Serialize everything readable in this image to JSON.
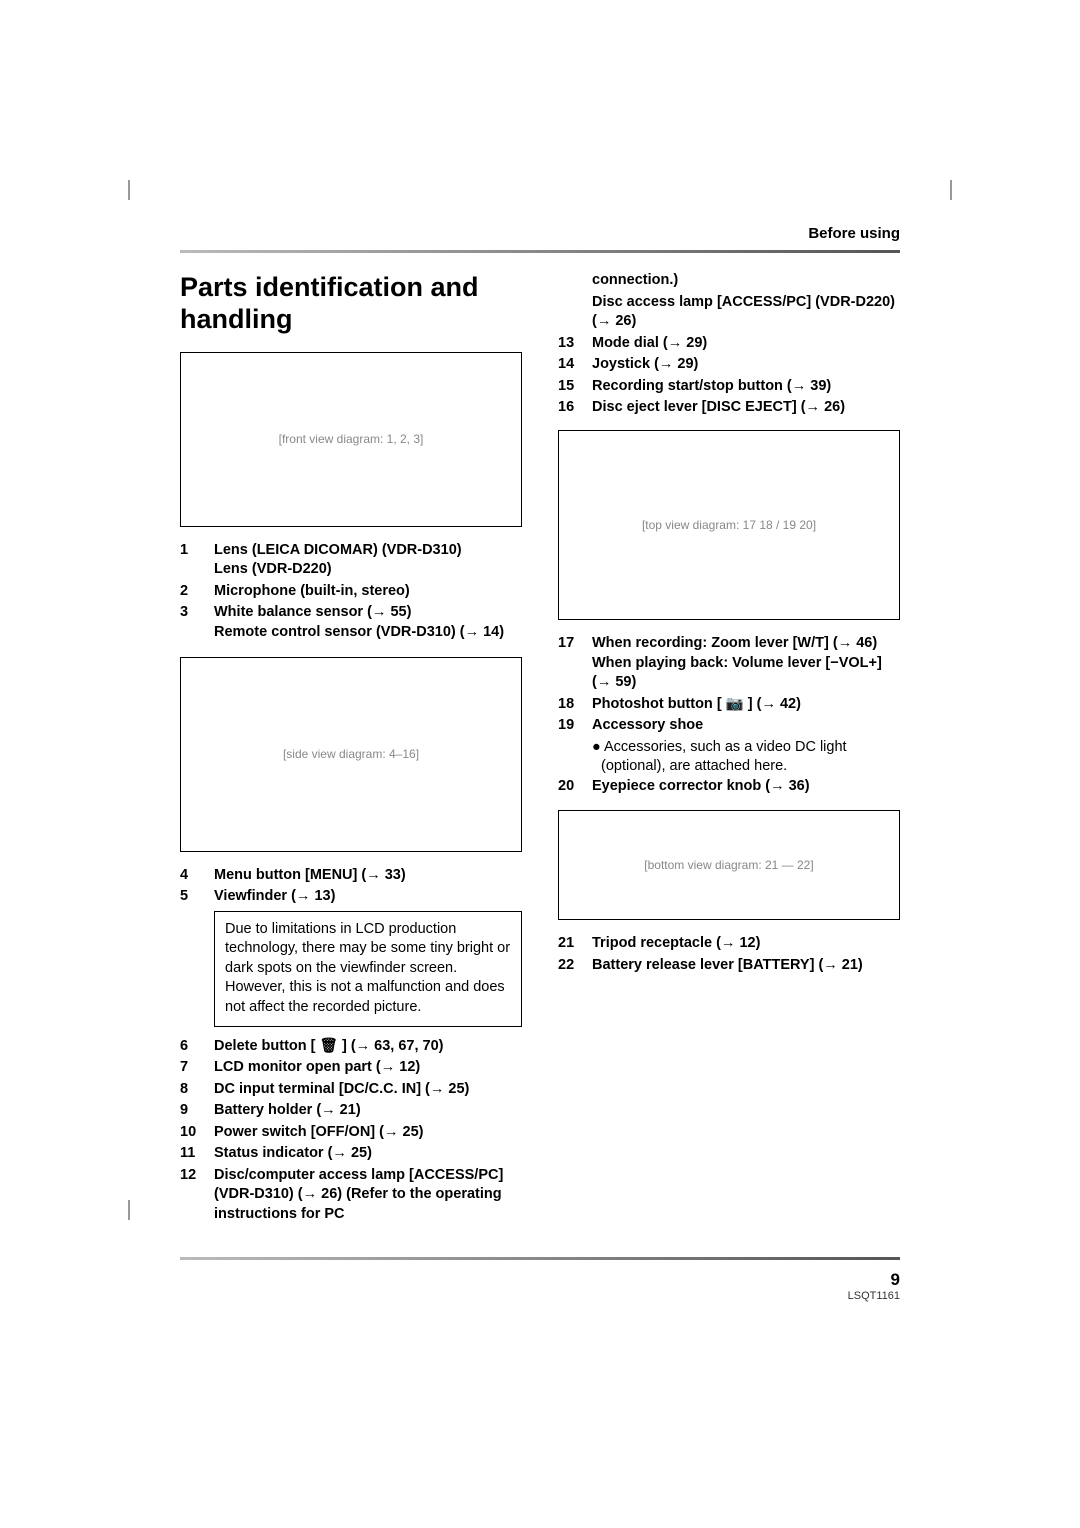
{
  "section_header": "Before using",
  "title": "Parts identification and handling",
  "page_number": "9",
  "doc_id": "LSQT1161",
  "figures": {
    "fig1_alt": "[front view diagram: 1, 2, 3]",
    "fig2_alt": "[side view diagram: 4–16]",
    "fig3_alt": "[top view diagram: 17 18 / 19 20]",
    "fig4_alt": "[bottom view diagram: 21 — 22]"
  },
  "left_list_a": [
    {
      "n": "1",
      "t": "Lens (LEICA DICOMAR) (VDR-D310)\nLens (VDR-D220)"
    },
    {
      "n": "2",
      "t": "Microphone (built-in, stereo)"
    },
    {
      "n": "3",
      "t": "White balance sensor (→ 55)\nRemote control sensor (VDR-D310) (→ 14)"
    }
  ],
  "left_list_b": [
    {
      "n": "4",
      "t": "Menu button [MENU] (→ 33)"
    },
    {
      "n": "5",
      "t": "Viewfinder (→ 13)"
    }
  ],
  "viewfinder_note": "Due to limitations in LCD production technology, there may be some tiny bright or dark spots on the viewfinder screen. However, this is not a malfunction and does not affect the recorded picture.",
  "left_list_c": [
    {
      "n": "6",
      "t": "Delete button [ 🗑 ] (→ 63, 67, 70)"
    },
    {
      "n": "7",
      "t": "LCD monitor open part (→ 12)"
    },
    {
      "n": "8",
      "t": "DC input terminal [DC/C.C. IN] (→ 25)"
    },
    {
      "n": "9",
      "t": "Battery holder (→ 21)"
    },
    {
      "n": "10",
      "t": "Power switch [OFF/ON] (→ 25)"
    },
    {
      "n": "11",
      "t": "Status indicator (→ 25)"
    },
    {
      "n": "12",
      "t": "Disc/computer access lamp [ACCESS/PC] (VDR-D310) (→ 26) (Refer to the operating instructions for PC"
    }
  ],
  "right_cont": [
    "connection.)",
    "Disc access lamp [ACCESS/PC] (VDR-D220) (→ 26)"
  ],
  "right_list_a": [
    {
      "n": "13",
      "t": "Mode dial (→ 29)"
    },
    {
      "n": "14",
      "t": "Joystick (→ 29)"
    },
    {
      "n": "15",
      "t": "Recording start/stop button (→ 39)"
    },
    {
      "n": "16",
      "t": "Disc eject lever [DISC EJECT] (→ 26)"
    }
  ],
  "right_list_b": [
    {
      "n": "17",
      "t": "When recording: Zoom lever [W/T] (→ 46)\nWhen playing back: Volume lever [−VOL+] (→ 59)"
    },
    {
      "n": "18",
      "t": "Photoshot button [ 📷 ] (→ 42)"
    },
    {
      "n": "19",
      "t": "Accessory shoe"
    }
  ],
  "accessory_sub": "● Accessories, such as a video DC light (optional), are attached here.",
  "right_list_b2": [
    {
      "n": "20",
      "t": "Eyepiece corrector knob (→ 36)"
    }
  ],
  "right_list_c": [
    {
      "n": "21",
      "t": "Tripod receptacle (→ 12)"
    },
    {
      "n": "22",
      "t": "Battery release lever [BATTERY] (→ 21)"
    }
  ]
}
